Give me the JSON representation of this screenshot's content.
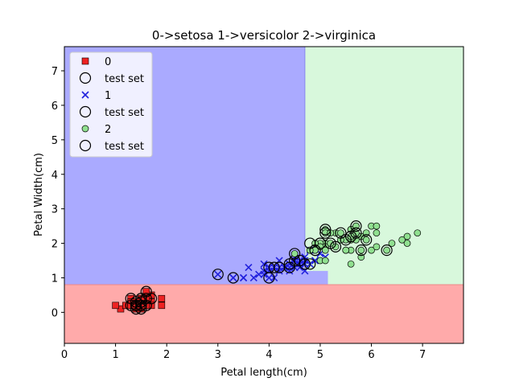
{
  "chart_data": {
    "type": "scatter",
    "title": "0->setosa   1->versicolor   2->virginica",
    "xlabel": "Petal length(cm)",
    "ylabel": "Petal Width(cm)",
    "xlim": [
      0,
      7.8
    ],
    "ylim": [
      -0.9,
      7.7
    ],
    "xticks": [
      0,
      1,
      2,
      3,
      4,
      5,
      6,
      7
    ],
    "yticks": [
      0,
      1,
      2,
      3,
      4,
      5,
      6,
      7
    ],
    "legend_position": "top-left",
    "grid": false,
    "regions": [
      {
        "class": "0",
        "color": "#ffaaaa"
      },
      {
        "class": "1",
        "color": "#aaaaff"
      },
      {
        "class": "2",
        "color": "#d8f8dc"
      }
    ],
    "series": [
      {
        "name": "0",
        "marker": "square",
        "color": "#ee2222",
        "points": [
          [
            1.4,
            0.2
          ],
          [
            1.4,
            0.2
          ],
          [
            1.3,
            0.2
          ],
          [
            1.5,
            0.2
          ],
          [
            1.4,
            0.2
          ],
          [
            1.7,
            0.4
          ],
          [
            1.4,
            0.3
          ],
          [
            1.5,
            0.2
          ],
          [
            1.4,
            0.2
          ],
          [
            1.5,
            0.1
          ],
          [
            1.5,
            0.2
          ],
          [
            1.6,
            0.2
          ],
          [
            1.4,
            0.1
          ],
          [
            1.1,
            0.1
          ],
          [
            1.2,
            0.2
          ],
          [
            1.5,
            0.4
          ],
          [
            1.3,
            0.4
          ],
          [
            1.4,
            0.3
          ],
          [
            1.7,
            0.3
          ],
          [
            1.5,
            0.3
          ],
          [
            1.7,
            0.2
          ],
          [
            1.5,
            0.4
          ],
          [
            1.0,
            0.2
          ],
          [
            1.7,
            0.5
          ],
          [
            1.9,
            0.2
          ],
          [
            1.6,
            0.2
          ],
          [
            1.6,
            0.4
          ],
          [
            1.5,
            0.2
          ],
          [
            1.4,
            0.2
          ],
          [
            1.6,
            0.2
          ],
          [
            1.6,
            0.2
          ],
          [
            1.5,
            0.4
          ],
          [
            1.5,
            0.1
          ],
          [
            1.4,
            0.2
          ],
          [
            1.5,
            0.2
          ],
          [
            1.2,
            0.2
          ],
          [
            1.3,
            0.2
          ],
          [
            1.4,
            0.1
          ],
          [
            1.3,
            0.2
          ],
          [
            1.5,
            0.2
          ],
          [
            1.3,
            0.3
          ],
          [
            1.3,
            0.3
          ],
          [
            1.3,
            0.2
          ],
          [
            1.6,
            0.6
          ],
          [
            1.9,
            0.4
          ],
          [
            1.4,
            0.3
          ],
          [
            1.6,
            0.2
          ],
          [
            1.4,
            0.2
          ],
          [
            1.5,
            0.2
          ],
          [
            1.4,
            0.2
          ]
        ]
      },
      {
        "name": "test set",
        "marker": "circle-open",
        "color": "#000000",
        "points": [
          [
            1.3,
            0.4
          ],
          [
            1.6,
            0.6
          ],
          [
            1.4,
            0.2
          ],
          [
            1.5,
            0.3
          ],
          [
            1.6,
            0.4
          ],
          [
            1.5,
            0.1
          ],
          [
            1.4,
            0.1
          ],
          [
            1.5,
            0.2
          ],
          [
            1.4,
            0.3
          ],
          [
            1.7,
            0.4
          ],
          [
            1.5,
            0.4
          ],
          [
            1.3,
            0.2
          ],
          [
            1.6,
            0.2
          ],
          [
            1.5,
            0.2
          ],
          [
            1.4,
            0.2
          ]
        ]
      },
      {
        "name": "1",
        "marker": "x",
        "color": "#2222dd",
        "points": [
          [
            4.7,
            1.4
          ],
          [
            4.5,
            1.5
          ],
          [
            4.9,
            1.5
          ],
          [
            4.0,
            1.3
          ],
          [
            4.6,
            1.5
          ],
          [
            4.5,
            1.3
          ],
          [
            4.7,
            1.6
          ],
          [
            3.3,
            1.0
          ],
          [
            4.6,
            1.3
          ],
          [
            3.9,
            1.4
          ],
          [
            3.5,
            1.0
          ],
          [
            4.2,
            1.5
          ],
          [
            4.0,
            1.0
          ],
          [
            4.7,
            1.4
          ],
          [
            3.6,
            1.3
          ],
          [
            4.4,
            1.4
          ],
          [
            4.5,
            1.5
          ],
          [
            4.1,
            1.0
          ],
          [
            4.5,
            1.5
          ],
          [
            3.9,
            1.1
          ],
          [
            4.8,
            1.8
          ],
          [
            4.0,
            1.3
          ],
          [
            4.9,
            1.5
          ],
          [
            4.7,
            1.2
          ],
          [
            4.3,
            1.3
          ],
          [
            4.4,
            1.4
          ],
          [
            4.8,
            1.4
          ],
          [
            5.0,
            1.7
          ],
          [
            4.5,
            1.5
          ],
          [
            3.5,
            1.0
          ],
          [
            3.8,
            1.1
          ],
          [
            3.7,
            1.0
          ],
          [
            3.9,
            1.2
          ],
          [
            5.1,
            1.6
          ],
          [
            4.5,
            1.5
          ],
          [
            4.5,
            1.6
          ],
          [
            4.7,
            1.5
          ],
          [
            4.4,
            1.3
          ],
          [
            4.1,
            1.3
          ],
          [
            4.0,
            1.3
          ],
          [
            4.4,
            1.2
          ],
          [
            4.6,
            1.4
          ],
          [
            4.0,
            1.2
          ],
          [
            3.3,
            1.0
          ],
          [
            4.2,
            1.3
          ],
          [
            4.2,
            1.2
          ],
          [
            4.2,
            1.3
          ],
          [
            4.3,
            1.3
          ],
          [
            3.0,
            1.1
          ],
          [
            4.1,
            1.3
          ]
        ]
      },
      {
        "name": "test set",
        "marker": "circle-open",
        "color": "#000000",
        "points": [
          [
            3.0,
            1.1
          ],
          [
            3.3,
            1.0
          ],
          [
            4.0,
            1.0
          ],
          [
            4.0,
            1.3
          ],
          [
            4.2,
            1.3
          ],
          [
            4.4,
            1.4
          ],
          [
            4.5,
            1.5
          ],
          [
            4.7,
            1.4
          ],
          [
            4.6,
            1.5
          ],
          [
            4.8,
            1.4
          ],
          [
            4.5,
            1.7
          ],
          [
            4.9,
            1.8
          ],
          [
            5.0,
            2.0
          ],
          [
            4.1,
            1.3
          ],
          [
            4.4,
            1.3
          ]
        ]
      },
      {
        "name": "2",
        "marker": "circle",
        "color": "#90e090",
        "points": [
          [
            6.0,
            2.5
          ],
          [
            5.1,
            1.9
          ],
          [
            5.9,
            2.1
          ],
          [
            5.6,
            1.8
          ],
          [
            5.8,
            2.2
          ],
          [
            6.6,
            2.1
          ],
          [
            4.5,
            1.7
          ],
          [
            6.3,
            1.8
          ],
          [
            5.8,
            1.8
          ],
          [
            6.1,
            2.5
          ],
          [
            5.1,
            2.0
          ],
          [
            5.3,
            1.9
          ],
          [
            5.5,
            2.1
          ],
          [
            5.0,
            2.0
          ],
          [
            5.1,
            2.4
          ],
          [
            5.3,
            2.3
          ],
          [
            5.5,
            1.8
          ],
          [
            6.7,
            2.2
          ],
          [
            6.9,
            2.3
          ],
          [
            5.0,
            1.5
          ],
          [
            5.7,
            2.3
          ],
          [
            4.9,
            2.0
          ],
          [
            6.7,
            2.0
          ],
          [
            4.9,
            1.8
          ],
          [
            5.7,
            2.1
          ],
          [
            6.0,
            1.8
          ],
          [
            4.8,
            1.8
          ],
          [
            4.9,
            1.8
          ],
          [
            5.6,
            2.1
          ],
          [
            5.8,
            1.6
          ],
          [
            6.1,
            1.9
          ],
          [
            6.4,
            2.0
          ],
          [
            5.6,
            2.2
          ],
          [
            5.1,
            1.5
          ],
          [
            5.6,
            1.4
          ],
          [
            6.1,
            2.3
          ],
          [
            5.6,
            2.4
          ],
          [
            5.5,
            1.8
          ],
          [
            4.8,
            1.8
          ],
          [
            5.4,
            2.1
          ],
          [
            5.6,
            2.4
          ],
          [
            5.1,
            2.3
          ],
          [
            5.1,
            1.9
          ],
          [
            5.9,
            2.3
          ],
          [
            5.7,
            2.5
          ],
          [
            5.2,
            2.3
          ],
          [
            5.0,
            1.9
          ],
          [
            5.2,
            2.0
          ],
          [
            5.4,
            2.3
          ],
          [
            5.1,
            1.8
          ]
        ]
      },
      {
        "name": "test set",
        "marker": "circle-open",
        "color": "#000000",
        "points": [
          [
            5.7,
            2.5
          ],
          [
            5.1,
            2.3
          ],
          [
            5.4,
            2.3
          ],
          [
            5.7,
            2.3
          ],
          [
            5.9,
            2.1
          ],
          [
            5.2,
            2.0
          ],
          [
            5.3,
            1.9
          ],
          [
            5.5,
            2.1
          ],
          [
            5.0,
            2.0
          ],
          [
            4.9,
            1.8
          ],
          [
            5.8,
            1.8
          ],
          [
            6.3,
            1.8
          ],
          [
            5.6,
            2.2
          ],
          [
            5.1,
            2.4
          ],
          [
            4.8,
            2.0
          ]
        ]
      }
    ]
  }
}
